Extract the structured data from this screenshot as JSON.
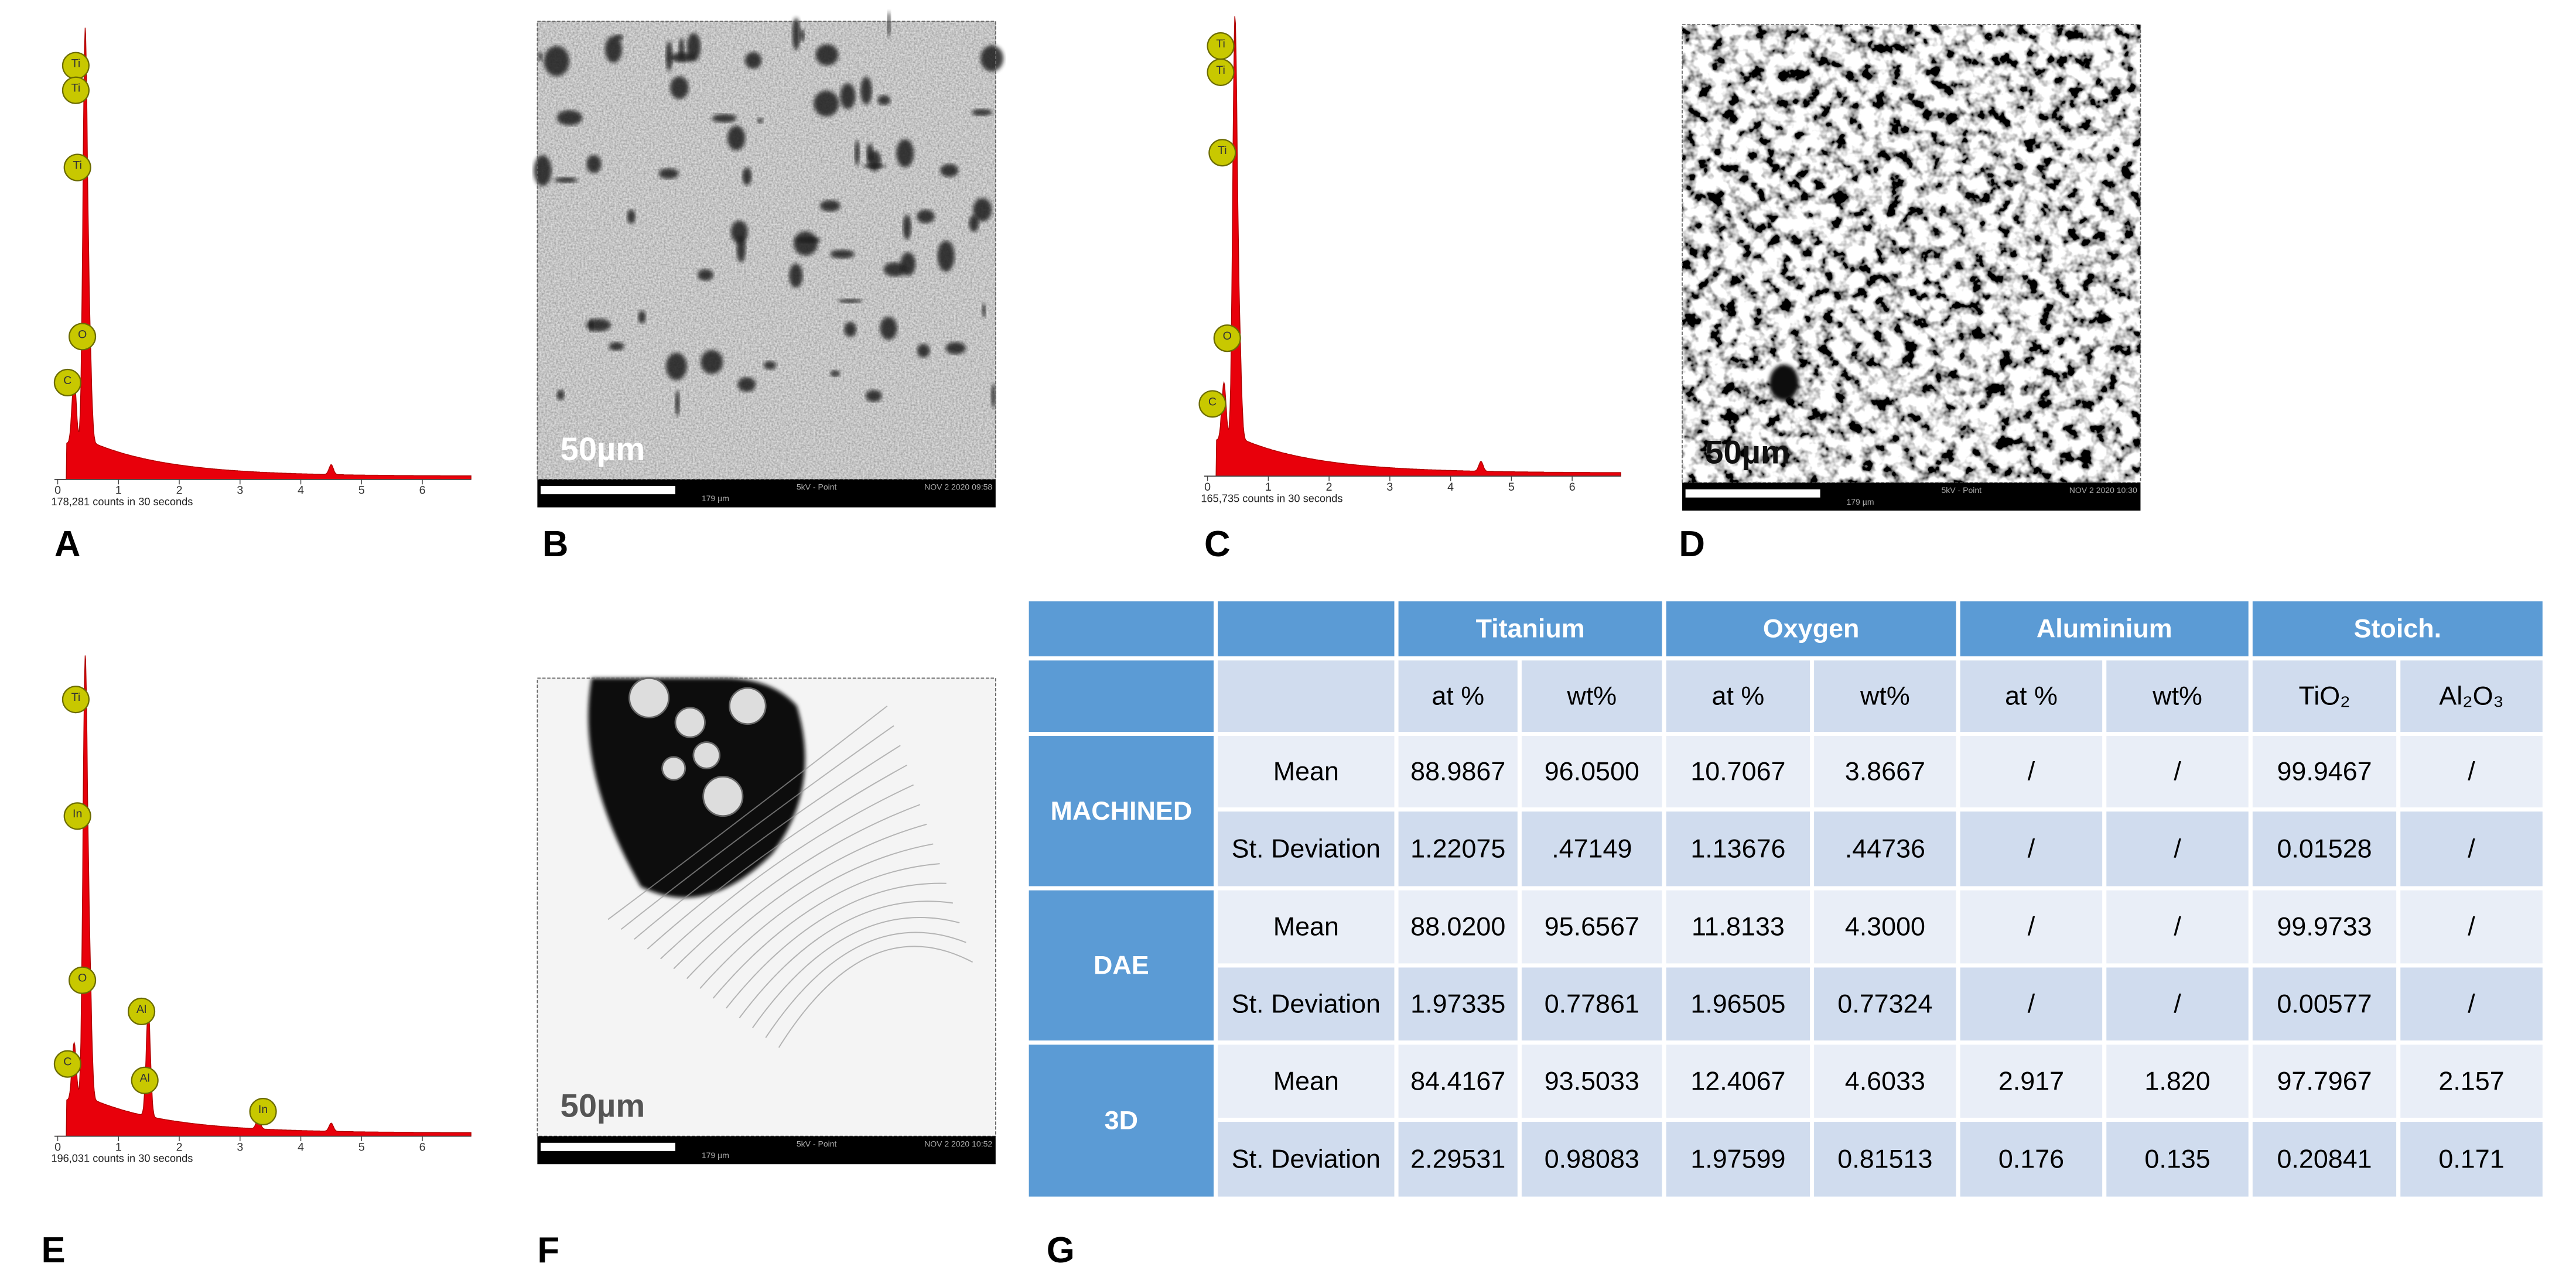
{
  "spectra": [
    {
      "label": "A",
      "counts": "178,281 counts in 30 seconds",
      "ticks": [
        0,
        1,
        2,
        3,
        4,
        5,
        6
      ],
      "peaks": [
        "Ti",
        "Ti",
        "Ti",
        "O",
        "C"
      ]
    },
    {
      "label": "C",
      "counts": "165,735 counts in 30 seconds",
      "ticks": [
        0,
        1,
        2,
        3,
        4,
        5,
        6
      ],
      "peaks": [
        "Ti",
        "Ti",
        "Ti",
        "O",
        "C"
      ]
    },
    {
      "label": "E",
      "counts": "196,031 counts in 30 seconds",
      "ticks": [
        0,
        1,
        2,
        3,
        4,
        5,
        6
      ],
      "peaks": [
        "Ti",
        "In",
        "O",
        "Al",
        "Al",
        "C",
        "In"
      ]
    }
  ],
  "images": [
    {
      "label": "B",
      "scale": "50µm",
      "mode": "5kV - Point",
      "date": "NOV 2 2020 09:58",
      "field": "179 µm"
    },
    {
      "label": "D",
      "scale": "50µm",
      "mode": "5kV - Point",
      "date": "NOV 2 2020 10:30",
      "field": "179 µm"
    },
    {
      "label": "F",
      "scale": "50µm",
      "mode": "5kV - Point",
      "date": "NOV 2 2020 10:52",
      "field": "179 µm"
    }
  ],
  "table": {
    "label": "G",
    "groups": [
      "Titanium",
      "Oxygen",
      "Aluminium",
      "Stoich."
    ],
    "subheaders": [
      "at %",
      "wt%",
      "at %",
      "wt%",
      "at %",
      "wt%",
      "TiO₂",
      "Al₂O₃"
    ],
    "blocks": [
      {
        "name": "MACHINED",
        "rows": [
          {
            "stat": "Mean",
            "values": [
              "88.9867",
              "96.0500",
              "10.7067",
              "3.8667",
              "/",
              "/",
              "99.9467",
              "/"
            ]
          },
          {
            "stat": "St. Deviation",
            "values": [
              "1.22075",
              ".47149",
              "1.13676",
              ".44736",
              "/",
              "/",
              "0.01528",
              "/"
            ]
          }
        ]
      },
      {
        "name": "DAE",
        "rows": [
          {
            "stat": "Mean",
            "values": [
              "88.0200",
              "95.6567",
              "11.8133",
              "4.3000",
              "/",
              "/",
              "99.9733",
              "/"
            ]
          },
          {
            "stat": "St. Deviation",
            "values": [
              "1.97335",
              "0.77861",
              "1.96505",
              "0.77324",
              "/",
              "/",
              "0.00577",
              "/"
            ]
          }
        ]
      },
      {
        "name": "3D",
        "rows": [
          {
            "stat": "Mean",
            "values": [
              "84.4167",
              "93.5033",
              "12.4067",
              "4.6033",
              "2.917",
              "1.820",
              "97.7967",
              "2.157"
            ]
          },
          {
            "stat": "St. Deviation",
            "values": [
              "2.29531",
              "0.98083",
              "1.97599",
              "0.81513",
              "0.176",
              "0.135",
              "0.20841",
              "0.171"
            ]
          }
        ]
      }
    ]
  }
}
